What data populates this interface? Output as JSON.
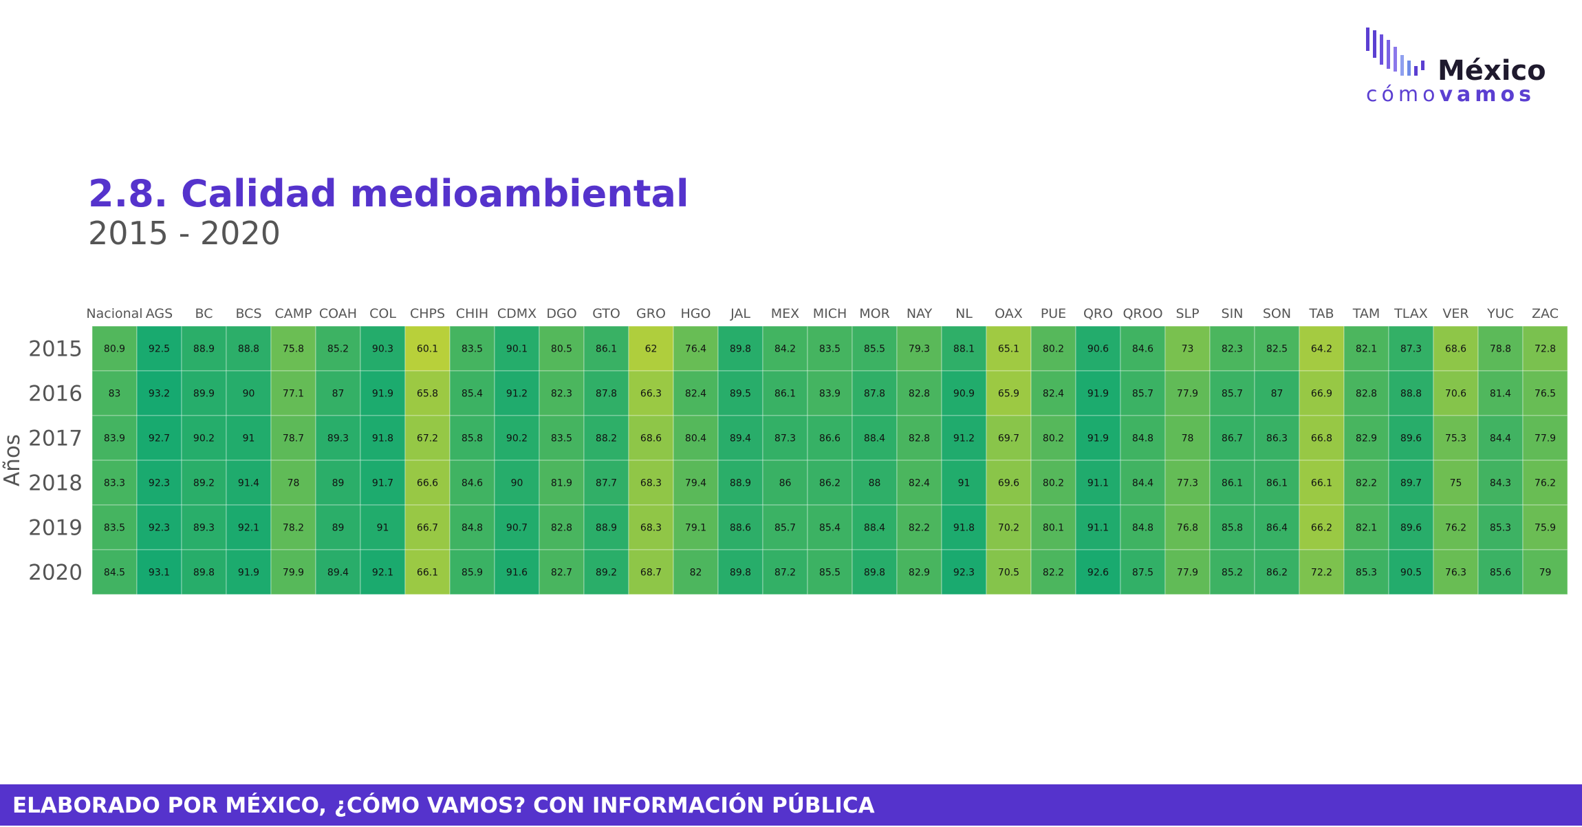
{
  "logo": {
    "line1": "México",
    "line2a": "cómo",
    "line2b": "vamos"
  },
  "title": "2.8. Calidad medioambiental",
  "subtitle": "2015 - 2020",
  "footer": "ELABORADO POR MÉXICO, ¿CÓMO VAMOS? CON INFORMACIÓN PÚBLICA",
  "colors": {
    "brand": "#5533cc",
    "low": "#b8d03a",
    "high": "#16a970"
  },
  "chart_data": {
    "type": "heatmap",
    "ylabel": "Años",
    "xlabel": "",
    "categories": [
      "Nacional",
      "AGS",
      "BC",
      "BCS",
      "CAMP",
      "COAH",
      "COL",
      "CHPS",
      "CHIH",
      "CDMX",
      "DGO",
      "GTO",
      "GRO",
      "HGO",
      "JAL",
      "MEX",
      "MICH",
      "MOR",
      "NAY",
      "NL",
      "OAX",
      "PUE",
      "QRO",
      "QROO",
      "SLP",
      "SIN",
      "SON",
      "TAB",
      "TAM",
      "TLAX",
      "VER",
      "YUC",
      "ZAC"
    ],
    "rows": [
      "2015",
      "2016",
      "2017",
      "2018",
      "2019",
      "2020"
    ],
    "values": [
      [
        80.9,
        92.5,
        88.9,
        88.8,
        75.8,
        85.2,
        90.3,
        60.1,
        83.5,
        90.1,
        80.5,
        86.1,
        62,
        76.4,
        89.8,
        84.2,
        83.5,
        85.5,
        79.3,
        88.1,
        65.1,
        80.2,
        90.6,
        84.6,
        73,
        82.3,
        82.5,
        64.2,
        82.1,
        87.3,
        68.6,
        78.8,
        72.8
      ],
      [
        83,
        93.2,
        89.9,
        90,
        77.1,
        87,
        91.9,
        65.8,
        85.4,
        91.2,
        82.3,
        87.8,
        66.3,
        82.4,
        89.5,
        86.1,
        83.9,
        87.8,
        82.8,
        90.9,
        65.9,
        82.4,
        91.9,
        85.7,
        77.9,
        85.7,
        87,
        66.9,
        82.8,
        88.8,
        70.6,
        81.4,
        76.5
      ],
      [
        83.9,
        92.7,
        90.2,
        91,
        78.7,
        89.3,
        91.8,
        67.2,
        85.8,
        90.2,
        83.5,
        88.2,
        68.6,
        80.4,
        89.4,
        87.3,
        86.6,
        88.4,
        82.8,
        91.2,
        69.7,
        80.2,
        91.9,
        84.8,
        78,
        86.7,
        86.3,
        66.8,
        82.9,
        89.6,
        75.3,
        84.4,
        77.9
      ],
      [
        83.3,
        92.3,
        89.2,
        91.4,
        78,
        89,
        91.7,
        66.6,
        84.6,
        90,
        81.9,
        87.7,
        68.3,
        79.4,
        88.9,
        86,
        86.2,
        88,
        82.4,
        91,
        69.6,
        80.2,
        91.1,
        84.4,
        77.3,
        86.1,
        86.1,
        66.1,
        82.2,
        89.7,
        75,
        84.3,
        76.2
      ],
      [
        83.5,
        92.3,
        89.3,
        92.1,
        78.2,
        89,
        91,
        66.7,
        84.8,
        90.7,
        82.8,
        88.9,
        68.3,
        79.1,
        88.6,
        85.7,
        85.4,
        88.4,
        82.2,
        91.8,
        70.2,
        80.1,
        91.1,
        84.8,
        76.8,
        85.8,
        86.4,
        66.2,
        82.1,
        89.6,
        76.2,
        85.3,
        75.9
      ],
      [
        84.5,
        93.1,
        89.8,
        91.9,
        79.9,
        89.4,
        92.1,
        66.1,
        85.9,
        91.6,
        82.7,
        89.2,
        68.7,
        82,
        89.8,
        87.2,
        85.5,
        89.8,
        82.9,
        92.3,
        70.5,
        82.2,
        92.6,
        87.5,
        77.9,
        85.2,
        86.2,
        72.2,
        85.3,
        90.5,
        76.3,
        85.6,
        79
      ]
    ]
  }
}
